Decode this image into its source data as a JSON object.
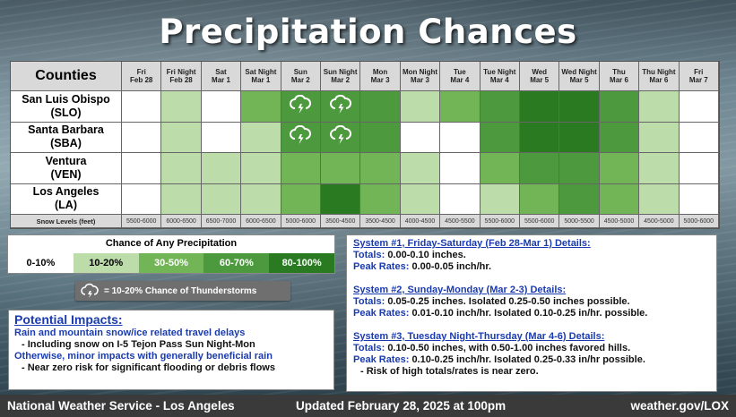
{
  "title": "Precipitation Chances",
  "grid": {
    "counties_label": "Counties",
    "periods": [
      [
        "Fri",
        "Feb 28"
      ],
      [
        "Fri Night",
        "Feb 28"
      ],
      [
        "Sat",
        "Mar 1"
      ],
      [
        "Sat Night",
        "Mar 1"
      ],
      [
        "Sun",
        "Mar 2"
      ],
      [
        "Sun Night",
        "Mar 2"
      ],
      [
        "Mon",
        "Mar 3"
      ],
      [
        "Mon Night",
        "Mar 3"
      ],
      [
        "Tue",
        "Mar 4"
      ],
      [
        "Tue Night",
        "Mar 4"
      ],
      [
        "Wed",
        "Mar 5"
      ],
      [
        "Wed Night",
        "Mar 5"
      ],
      [
        "Thu",
        "Mar 6"
      ],
      [
        "Thu Night",
        "Mar 6"
      ],
      [
        "Fri",
        "Mar 7"
      ]
    ],
    "counties": [
      {
        "name": "San Luis Obispo",
        "abbr": "(SLO)",
        "levels": [
          0,
          1,
          0,
          2,
          3,
          3,
          3,
          1,
          2,
          3,
          4,
          4,
          3,
          1,
          0
        ],
        "thunder": [
          4,
          5
        ]
      },
      {
        "name": "Santa Barbara",
        "abbr": "(SBA)",
        "levels": [
          0,
          1,
          0,
          1,
          3,
          3,
          3,
          0,
          0,
          3,
          4,
          4,
          3,
          1,
          0
        ],
        "thunder": [
          4,
          5
        ]
      },
      {
        "name": "Ventura",
        "abbr": "(VEN)",
        "levels": [
          0,
          1,
          1,
          1,
          2,
          2,
          2,
          1,
          0,
          2,
          3,
          3,
          2,
          1,
          0
        ],
        "thunder": []
      },
      {
        "name": "Los Angeles",
        "abbr": "(LA)",
        "levels": [
          0,
          1,
          1,
          1,
          2,
          4,
          2,
          1,
          0,
          1,
          2,
          3,
          2,
          1,
          0
        ],
        "thunder": []
      }
    ],
    "snow_label": "Snow Levels (feet)",
    "snow_levels": [
      "5500-6000",
      "6000-6500",
      "6500-7000",
      "6000-6500",
      "5000-6000",
      "3500-4500",
      "3500-4500",
      "4000-4500",
      "4500-5500",
      "5500-6000",
      "5500-6000",
      "5000-5500",
      "4500-5000",
      "4500-5000",
      "5000-6000"
    ]
  },
  "colors": {
    "levels": [
      "#ffffff",
      "#bcdcaa",
      "#72b556",
      "#4c9a3d",
      "#2a7a22"
    ],
    "header": "#d9d9d9",
    "blue_text": "#1a3bb0"
  },
  "legend": {
    "title": "Chance of Any Precipitation",
    "items": [
      {
        "label": "0-10%",
        "bg": "#ffffff",
        "fg": "#000000"
      },
      {
        "label": "10-20%",
        "bg": "#bcdcaa",
        "fg": "#000000"
      },
      {
        "label": "30-50%",
        "bg": "#72b556",
        "fg": "#ffffff"
      },
      {
        "label": "60-70%",
        "bg": "#4c9a3d",
        "fg": "#ffffff"
      },
      {
        "label": "80-100%",
        "bg": "#2a7a22",
        "fg": "#ffffff"
      }
    ],
    "thunder_text": "= 10-20% Chance of Thunderstorms"
  },
  "impacts": {
    "title": "Potential Impacts:",
    "line1": "Rain and mountain snow/ice related travel delays",
    "line2": "-  Including snow on I-5 Tejon Pass Sun Night-Mon",
    "line3": "Otherwise, minor impacts with generally beneficial rain",
    "line4": "-  Near zero risk for significant flooding or debris flows"
  },
  "details": {
    "sys1_title": "System #1, Friday-Saturday (Feb 28-Mar 1) Details:",
    "sys1_totals_label": "Totals:",
    "sys1_totals": "0.00-0.10 inches.",
    "sys1_rates_label": "Peak Rates:",
    "sys1_rates": "0.00-0.05 inch/hr.",
    "sys2_title": "System #2, Sunday-Monday (Mar 2-3) Details:",
    "sys2_totals_label": "Totals:",
    "sys2_totals": "0.05-0.25 inches. Isolated 0.25-0.50 inches possible.",
    "sys2_rates_label": "Peak Rates:",
    "sys2_rates": "0.01-0.10 inch/hr.  Isolated 0.10-0.25 in/hr. possible.",
    "sys3_title": "System #3, Tuesday Night-Thursday (Mar 4-6) Details:",
    "sys3_totals_label": "Totals:",
    "sys3_totals": "0.10-0.50 inches, with 0.50-1.00 inches favored hills.",
    "sys3_rates_label": "Peak Rates:",
    "sys3_rates": "0.10-0.25 inch/hr.  Isolated 0.25-0.33 in/hr possible.",
    "sys3_note": "-  Risk of high totals/rates is near zero."
  },
  "footer": {
    "left": "National Weather Service - Los Angeles",
    "center": "Updated February 28, 2025 at 100pm",
    "right": "weather.gov/LOX"
  }
}
